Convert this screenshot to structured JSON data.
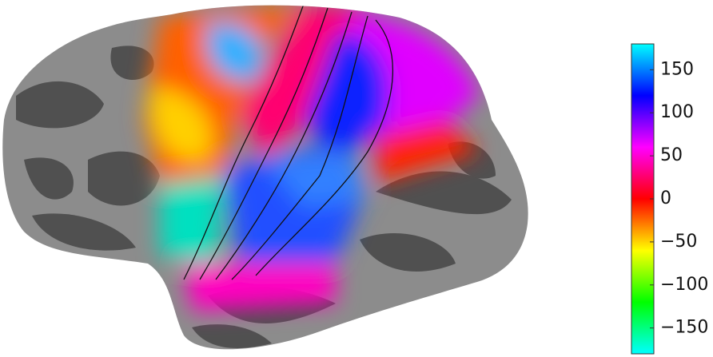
{
  "colorbar": {
    "lim": [
      -180,
      180
    ],
    "ticks": [
      {
        "value": 150,
        "label": "150"
      },
      {
        "value": 100,
        "label": "100"
      },
      {
        "value": 50,
        "label": "50"
      },
      {
        "value": 0,
        "label": "0"
      },
      {
        "value": -50,
        "label": "−50"
      },
      {
        "value": -100,
        "label": "−100"
      },
      {
        "value": -150,
        "label": "−150"
      }
    ],
    "colors": [
      "#00ffff",
      "#00ff00",
      "#ffff00",
      "#ff0000",
      "#ff00ff",
      "#0000ff",
      "#00ffff"
    ]
  }
}
